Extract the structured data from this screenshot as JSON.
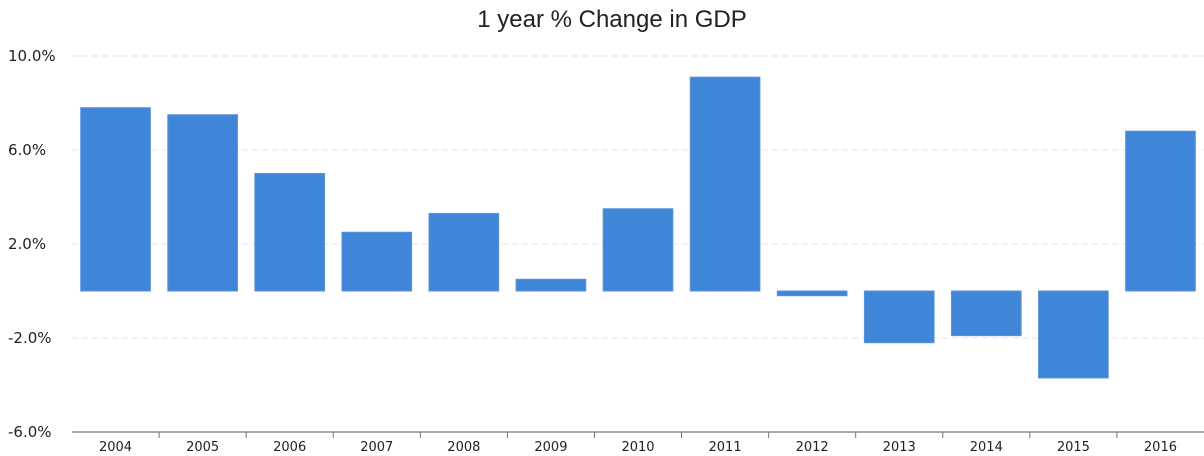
{
  "chart_data": {
    "type": "bar",
    "title": "1 year % Change in GDP",
    "xlabel": "",
    "ylabel": "",
    "categories": [
      "2004",
      "2005",
      "2006",
      "2007",
      "2008",
      "2009",
      "2010",
      "2011",
      "2012",
      "2013",
      "2014",
      "2015",
      "2016"
    ],
    "values": [
      7.8,
      7.5,
      5.0,
      2.5,
      3.3,
      0.5,
      3.5,
      9.1,
      -0.2,
      -2.2,
      -1.9,
      -3.7,
      6.8
    ],
    "ylim": [
      -6,
      10
    ],
    "yticks": [
      10,
      6,
      2,
      -2,
      -6
    ],
    "ytick_labels": [
      "10.0%",
      "6.0%",
      "2.0%",
      "-2.0%",
      "-6.0%"
    ],
    "grid": true,
    "bar_color": "#3f86d9"
  }
}
